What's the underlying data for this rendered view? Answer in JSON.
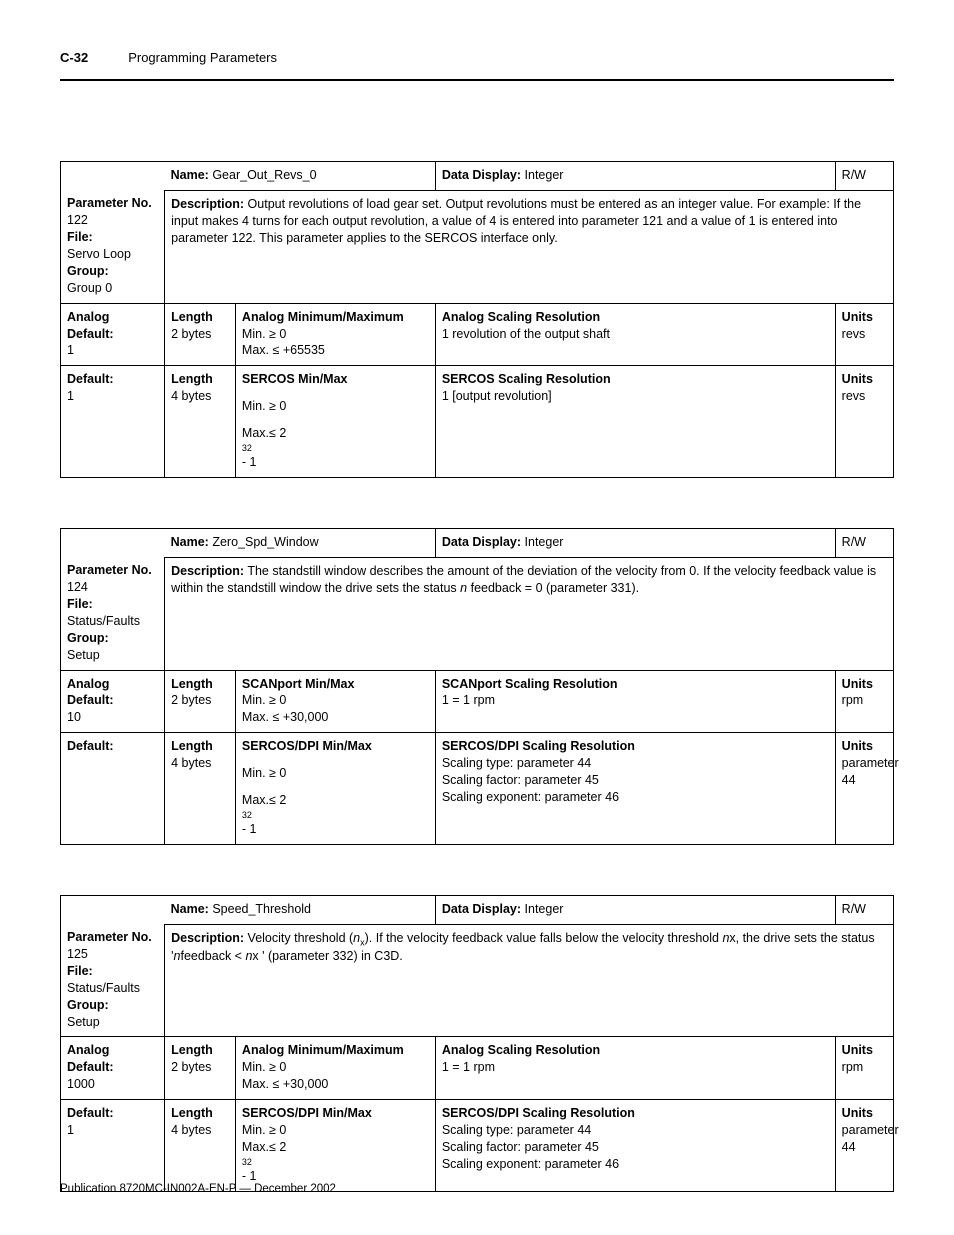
{
  "header": {
    "page_num": "C-32",
    "section": "Programming Parameters"
  },
  "footer": "Publication 8720MC-IN002A-EN-P — December 2002",
  "labels": {
    "name": "Name:",
    "data_display": "Data Display:",
    "parameter_no": "Parameter No.",
    "file": "File:",
    "group": "Group:",
    "description": "Description:",
    "analog_default": "Analog Default:",
    "default": "Default:",
    "length": "Length",
    "units": "Units",
    "analog_minmax": "Analog Minimum/Maximum",
    "sercos_minmax": "SERCOS Min/Max",
    "scanport_minmax": "SCANport Min/Max",
    "sercos_dpi_minmax": "SERCOS/DPI Min/Max",
    "analog_scaling": "Analog Scaling Resolution",
    "sercos_scaling": "SERCOS Scaling Resolution",
    "scanport_scaling": "SCANport Scaling Resolution",
    "sercos_dpi_scaling": "SERCOS/DPI Scaling Resolution"
  },
  "tables": [
    {
      "name": "Gear_Out_Revs_0",
      "data_display": "Integer",
      "rw": "R/W",
      "param_no": "122",
      "file_val": "Servo Loop",
      "group_val": "Group 0",
      "description": "Output revolutions of load gear set. Output revolutions must be entered as an integer value. For example: If the input makes 4 turns for each  output revolution, a value of 4 is entered into parameter 121 and a value of 1 is entered into parameter 122. This parameter applies to the SERCOS interface only.",
      "rows": [
        {
          "left_label": "Analog Default:",
          "left_val": "1",
          "length": "2 bytes",
          "minmax_label": "Analog Minimum/Maximum",
          "min": "Min. ≥ 0",
          "max": "Max. ≤ +65535",
          "scaling_label": "Analog Scaling Resolution",
          "scaling_val": "1 revolution of the output shaft",
          "units": "revs"
        },
        {
          "left_label": "Default:",
          "left_val": "1",
          "length": "4 bytes",
          "minmax_label": "SERCOS Min/Max",
          "min": "Min.  ≥ 0",
          "max_prefix": "Max.≤ 2",
          "max_exp": "32",
          "max_suffix": " - 1",
          "scaling_label": "SERCOS Scaling Resolution",
          "scaling_val": "1 [output revolution]",
          "units": "revs",
          "spaced": true
        }
      ]
    },
    {
      "name": " Zero_Spd_Window",
      "data_display": "Integer",
      "rw": "R/W",
      "param_no": "124",
      "file_val": "Status/Faults",
      "group_val": "Setup",
      "desc_prefix": "The standstill window describes the amount of the deviation of the velocity from 0. If the velocity feedback value is within the standstill window the drive sets the status ",
      "desc_italic": "n",
      "desc_suffix": " feedback = 0 (parameter 331).",
      "rows": [
        {
          "left_label": "Analog Default:",
          "left_val": "10",
          "length": "2 bytes",
          "minmax_label": "SCANport Min/Max",
          "min": "Min. ≥ 0",
          "max": "Max. ≤ +30,000",
          "scaling_label": "SCANport Scaling Resolution",
          "scaling_val": "1 = 1 rpm",
          "units": "rpm"
        },
        {
          "left_label": "Default:",
          "left_val": "",
          "length": "4 bytes",
          "minmax_label": "SERCOS/DPI Min/Max",
          "min": "Min.  ≥ 0",
          "max_prefix": "Max.≤ 2",
          "max_exp": "32",
          "max_suffix": " - 1",
          "scaling_label": "SERCOS/DPI Scaling Resolution",
          "scaling_lines": [
            "Scaling type: parameter 44",
            "Scaling factor: parameter 45",
            "Scaling exponent: parameter 46"
          ],
          "units_lines": [
            "parameter",
            "44"
          ],
          "spaced": true
        }
      ]
    },
    {
      "name": " Speed_Threshold",
      "data_display": "Integer",
      "rw": "R/W",
      "param_no": "125",
      "file_val": "Status/Faults",
      "group_val": "Setup",
      "desc_p1": "Velocity threshold (",
      "desc_i1": "n",
      "desc_sub1": "x",
      "desc_p2": "). If the velocity feedback value falls below the velocity threshold ",
      "desc_i2": "n",
      "desc_p3": "x, the drive sets the status '",
      "desc_i3": "n",
      "desc_p4": "feedback < ",
      "desc_i4": " n",
      "desc_p5": "x ' (parameter 332) in C3D.",
      "rows": [
        {
          "left_label": "Analog Default:",
          "left_val": "1000",
          "length": "2 bytes",
          "minmax_label": "Analog Minimum/Maximum",
          "min": "Min. ≥ 0",
          "max": "Max. ≤ +30,000",
          "scaling_label": "Analog Scaling Resolution",
          "scaling_val": "1 = 1 rpm",
          "units": "rpm"
        },
        {
          "left_label": "Default:",
          "left_val": "1",
          "length": "4 bytes",
          "minmax_label": "SERCOS/DPI Min/Max",
          "min": "Min. ≥ 0",
          "max_prefix": "Max.≤ 2",
          "max_exp": "32",
          "max_suffix": " - 1",
          "scaling_label": "SERCOS/DPI Scaling Resolution",
          "scaling_lines": [
            "Scaling type: parameter 44",
            "Scaling factor: parameter 45",
            "Scaling exponent: parameter 46"
          ],
          "units_lines": [
            "parameter",
            "44"
          ]
        }
      ]
    }
  ],
  "col_widths": {
    "c1": "12.5%",
    "c2": "8.5%",
    "c3": "24%",
    "c4": "48%",
    "c5": "7%"
  }
}
